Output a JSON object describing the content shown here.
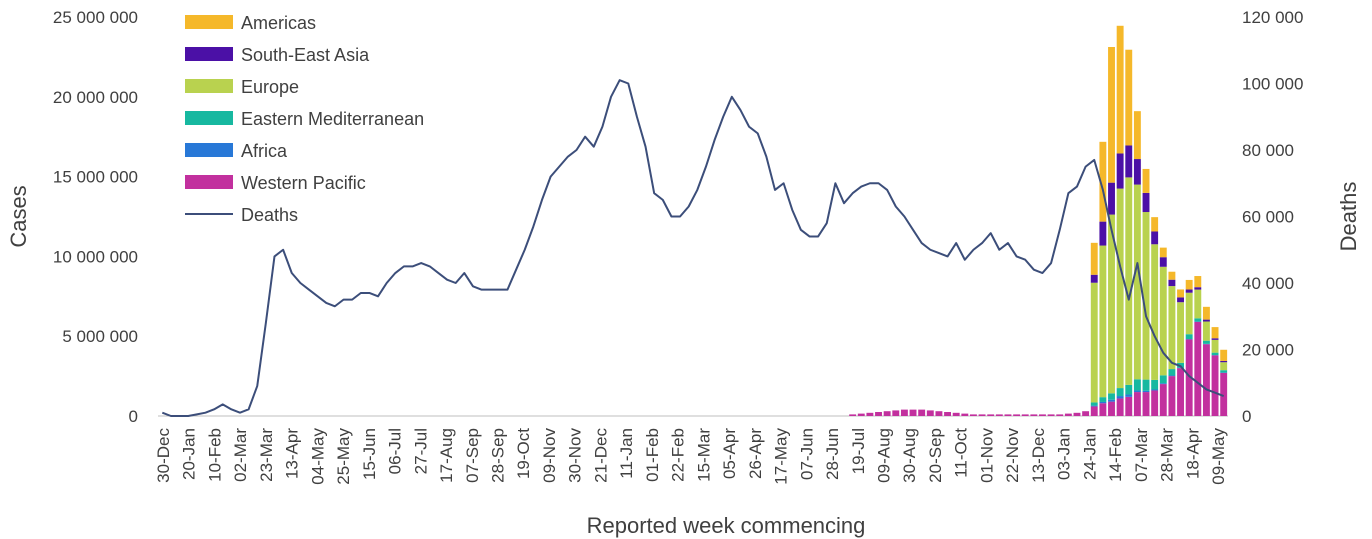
{
  "chart_data": {
    "type": "bar",
    "xlabel": "Reported week commencing",
    "ylabel": "Cases",
    "y2label": "Deaths",
    "ylim": [
      0,
      25000000
    ],
    "y2lim": [
      0,
      120000
    ],
    "yticks": [
      "0",
      "5 000 000",
      "10 000 000",
      "15 000 000",
      "20 000 000",
      "25 000 000"
    ],
    "y2ticks": [
      "0",
      "20 000",
      "40 000",
      "60 000",
      "80 000",
      "100 000",
      "120 000"
    ],
    "x_tick_labels": [
      "30-Dec",
      "20-Jan",
      "10-Feb",
      "02-Mar",
      "23-Mar",
      "13-Apr",
      "04-May",
      "25-May",
      "15-Jun",
      "06-Jul",
      "27-Jul",
      "17-Aug",
      "07-Sep",
      "28-Sep",
      "19-Oct",
      "09-Nov",
      "30-Nov",
      "21-Dec",
      "11-Jan",
      "01-Feb",
      "22-Feb",
      "15-Mar",
      "05-Apr",
      "26-Apr",
      "17-May",
      "07-Jun",
      "28-Jun",
      "19-Jul",
      "09-Aug",
      "30-Aug",
      "20-Sep",
      "11-Oct",
      "01-Nov",
      "22-Nov",
      "13-Dec",
      "03-Jan",
      "24-Jan",
      "14-Feb",
      "07-Mar",
      "28-Mar",
      "18-Apr",
      "09-May"
    ],
    "weeks": 124,
    "legend": {
      "placement": "top-left"
    },
    "series": [
      {
        "name": "Western Pacific",
        "color": "#c2309e",
        "values": [
          0,
          0,
          0,
          0,
          0,
          0,
          0,
          0,
          0,
          0,
          0,
          0,
          0,
          0,
          0,
          0,
          0,
          0,
          0,
          0,
          0,
          0,
          0,
          0,
          0,
          0,
          0,
          0,
          0,
          0,
          0,
          0,
          0,
          0,
          0,
          0,
          0,
          0,
          0,
          0,
          0,
          0,
          0,
          0,
          0,
          0,
          0,
          0,
          0,
          0,
          0,
          0,
          0,
          0,
          0,
          0,
          0,
          0,
          0,
          0,
          0,
          0,
          0,
          0,
          0,
          0,
          0,
          0,
          0,
          0,
          0,
          0,
          0,
          0,
          0,
          0,
          0,
          0,
          0,
          0,
          100000,
          150000,
          200000,
          250000,
          300000,
          350000,
          400000,
          400000,
          400000,
          350000,
          300000,
          250000,
          200000,
          150000,
          100000,
          100000,
          100000,
          100000,
          100000,
          100000,
          100000,
          100000,
          100000,
          100000,
          100000,
          150000,
          200000,
          300000,
          600000,
          800000,
          900000,
          1100000,
          1200000,
          1500000,
          1500000,
          1600000,
          2000000,
          2500000,
          3000000,
          4800000,
          5900000,
          4500000,
          3800000,
          2700000
        ]
      },
      {
        "name": "Africa",
        "color": "#2878d7",
        "values": [
          0,
          0,
          0,
          0,
          0,
          0,
          0,
          0,
          0,
          0,
          0,
          0,
          0,
          0,
          0,
          0,
          0,
          0,
          0,
          0,
          0,
          0,
          0,
          0,
          0,
          0,
          0,
          0,
          0,
          0,
          0,
          0,
          0,
          0,
          0,
          0,
          0,
          0,
          0,
          0,
          0,
          0,
          0,
          0,
          0,
          0,
          0,
          0,
          0,
          0,
          0,
          0,
          0,
          0,
          0,
          0,
          0,
          0,
          0,
          0,
          0,
          0,
          0,
          0,
          0,
          0,
          0,
          0,
          0,
          0,
          0,
          0,
          0,
          0,
          0,
          0,
          0,
          0,
          0,
          0,
          0,
          0,
          0,
          0,
          0,
          0,
          0,
          0,
          0,
          0,
          0,
          0,
          0,
          0,
          0,
          0,
          0,
          0,
          0,
          0,
          0,
          0,
          0,
          0,
          0,
          0,
          0,
          0,
          50000,
          80000,
          120000,
          150000,
          150000,
          100000,
          80000,
          60000,
          50000,
          40000,
          30000,
          25000,
          20000,
          20000,
          20000,
          20000
        ]
      },
      {
        "name": "Eastern Mediterranean",
        "color": "#17b8a0",
        "values": [
          0,
          0,
          0,
          0,
          0,
          0,
          0,
          0,
          0,
          0,
          0,
          0,
          0,
          0,
          0,
          0,
          0,
          0,
          0,
          0,
          0,
          0,
          0,
          0,
          0,
          0,
          0,
          0,
          0,
          0,
          0,
          0,
          0,
          0,
          0,
          0,
          0,
          0,
          0,
          0,
          0,
          0,
          0,
          0,
          0,
          0,
          0,
          0,
          0,
          0,
          0,
          0,
          0,
          0,
          0,
          0,
          0,
          0,
          0,
          0,
          0,
          0,
          0,
          0,
          0,
          0,
          0,
          0,
          0,
          0,
          0,
          0,
          0,
          0,
          0,
          0,
          0,
          0,
          0,
          0,
          0,
          0,
          0,
          0,
          0,
          0,
          0,
          0,
          0,
          0,
          0,
          0,
          0,
          0,
          0,
          0,
          0,
          0,
          0,
          0,
          0,
          0,
          0,
          0,
          0,
          0,
          0,
          0,
          200000,
          300000,
          400000,
          500000,
          600000,
          700000,
          700000,
          600000,
          500000,
          400000,
          300000,
          300000,
          200000,
          200000,
          150000,
          150000
        ]
      },
      {
        "name": "Europe",
        "color": "#b9d24f",
        "values": [
          0,
          0,
          0,
          0,
          0,
          0,
          0,
          0,
          0,
          0,
          0,
          0,
          0,
          0,
          0,
          0,
          0,
          0,
          0,
          0,
          0,
          0,
          0,
          0,
          0,
          0,
          0,
          0,
          0,
          0,
          0,
          0,
          0,
          0,
          0,
          0,
          0,
          0,
          0,
          0,
          0,
          0,
          0,
          0,
          0,
          0,
          0,
          0,
          0,
          0,
          0,
          0,
          0,
          0,
          0,
          0,
          0,
          0,
          0,
          0,
          0,
          0,
          0,
          0,
          0,
          0,
          0,
          0,
          0,
          0,
          0,
          0,
          0,
          0,
          0,
          0,
          0,
          0,
          0,
          0,
          0,
          0,
          0,
          0,
          0,
          0,
          0,
          0,
          0,
          0,
          0,
          0,
          0,
          0,
          0,
          0,
          0,
          0,
          0,
          0,
          0,
          0,
          0,
          0,
          0,
          0,
          0,
          0,
          7500000,
          9500000,
          11200000,
          12500000,
          13000000,
          12200000,
          10500000,
          8500000,
          6800000,
          5200000,
          3800000,
          2600000,
          1800000,
          1200000,
          800000,
          500000
        ]
      },
      {
        "name": "South-East Asia",
        "color": "#4b10a6",
        "values": [
          0,
          0,
          0,
          0,
          0,
          0,
          0,
          0,
          0,
          0,
          0,
          0,
          0,
          0,
          0,
          0,
          0,
          0,
          0,
          0,
          0,
          0,
          0,
          0,
          0,
          0,
          0,
          0,
          0,
          0,
          0,
          0,
          0,
          0,
          0,
          0,
          0,
          0,
          0,
          0,
          0,
          0,
          0,
          0,
          0,
          0,
          0,
          0,
          0,
          0,
          0,
          0,
          0,
          0,
          0,
          0,
          0,
          0,
          0,
          0,
          0,
          0,
          0,
          0,
          0,
          0,
          0,
          0,
          0,
          0,
          0,
          0,
          0,
          0,
          0,
          0,
          0,
          0,
          0,
          0,
          0,
          0,
          0,
          0,
          0,
          0,
          0,
          0,
          0,
          0,
          0,
          0,
          0,
          0,
          0,
          0,
          0,
          0,
          0,
          0,
          0,
          0,
          0,
          0,
          0,
          0,
          0,
          0,
          500000,
          1500000,
          2000000,
          2200000,
          2000000,
          1600000,
          1200000,
          800000,
          600000,
          400000,
          300000,
          200000,
          150000,
          120000,
          100000,
          80000
        ]
      },
      {
        "name": "Americas",
        "color": "#f5b82a",
        "values": [
          0,
          0,
          0,
          0,
          0,
          0,
          0,
          0,
          0,
          0,
          0,
          0,
          0,
          0,
          0,
          0,
          0,
          0,
          0,
          0,
          0,
          0,
          0,
          0,
          0,
          0,
          0,
          0,
          0,
          0,
          0,
          0,
          0,
          0,
          0,
          0,
          0,
          0,
          0,
          0,
          0,
          0,
          0,
          0,
          0,
          0,
          0,
          0,
          0,
          0,
          0,
          0,
          0,
          0,
          0,
          0,
          0,
          0,
          0,
          0,
          0,
          0,
          0,
          0,
          0,
          0,
          0,
          0,
          0,
          0,
          0,
          0,
          0,
          0,
          0,
          0,
          0,
          0,
          0,
          0,
          0,
          0,
          0,
          0,
          0,
          0,
          0,
          0,
          0,
          0,
          0,
          0,
          0,
          0,
          0,
          0,
          0,
          0,
          0,
          0,
          0,
          0,
          0,
          0,
          0,
          0,
          0,
          0,
          2000000,
          5000000,
          8500000,
          8000000,
          6000000,
          3000000,
          1500000,
          900000,
          600000,
          500000,
          500000,
          600000,
          700000,
          800000,
          700000,
          700000
        ]
      }
    ],
    "deaths_series": {
      "name": "Deaths",
      "color": "#3c4e7a",
      "axis": "right",
      "values": [
        1000,
        0,
        0,
        0,
        500,
        1000,
        2000,
        3500,
        2000,
        1000,
        2000,
        9000,
        28000,
        48000,
        50000,
        43000,
        40000,
        38000,
        36000,
        34000,
        33000,
        35000,
        35000,
        37000,
        37000,
        36000,
        40000,
        43000,
        45000,
        45000,
        46000,
        45000,
        43000,
        41000,
        40000,
        43000,
        39000,
        38000,
        38000,
        38000,
        38000,
        44000,
        50000,
        57000,
        65000,
        72000,
        75000,
        78000,
        80000,
        84000,
        81000,
        87000,
        96000,
        101000,
        100000,
        90000,
        81000,
        67000,
        65000,
        60000,
        60000,
        63000,
        68000,
        75000,
        83000,
        90000,
        96000,
        92000,
        87000,
        85000,
        78000,
        68000,
        70000,
        62000,
        56000,
        54000,
        54000,
        58000,
        70000,
        64000,
        67000,
        69000,
        70000,
        70000,
        68000,
        63000,
        60000,
        56000,
        52000,
        50000,
        49000,
        48000,
        52000,
        47000,
        50000,
        52000,
        55000,
        50000,
        52000,
        48000,
        47000,
        44000,
        43000,
        46000,
        56000,
        67000,
        69000,
        75000,
        77000,
        68000,
        56000,
        45000,
        35000,
        46000,
        30000,
        24000,
        19000,
        16000,
        15000,
        12000,
        10000,
        8000,
        7000,
        6000
      ]
    }
  }
}
